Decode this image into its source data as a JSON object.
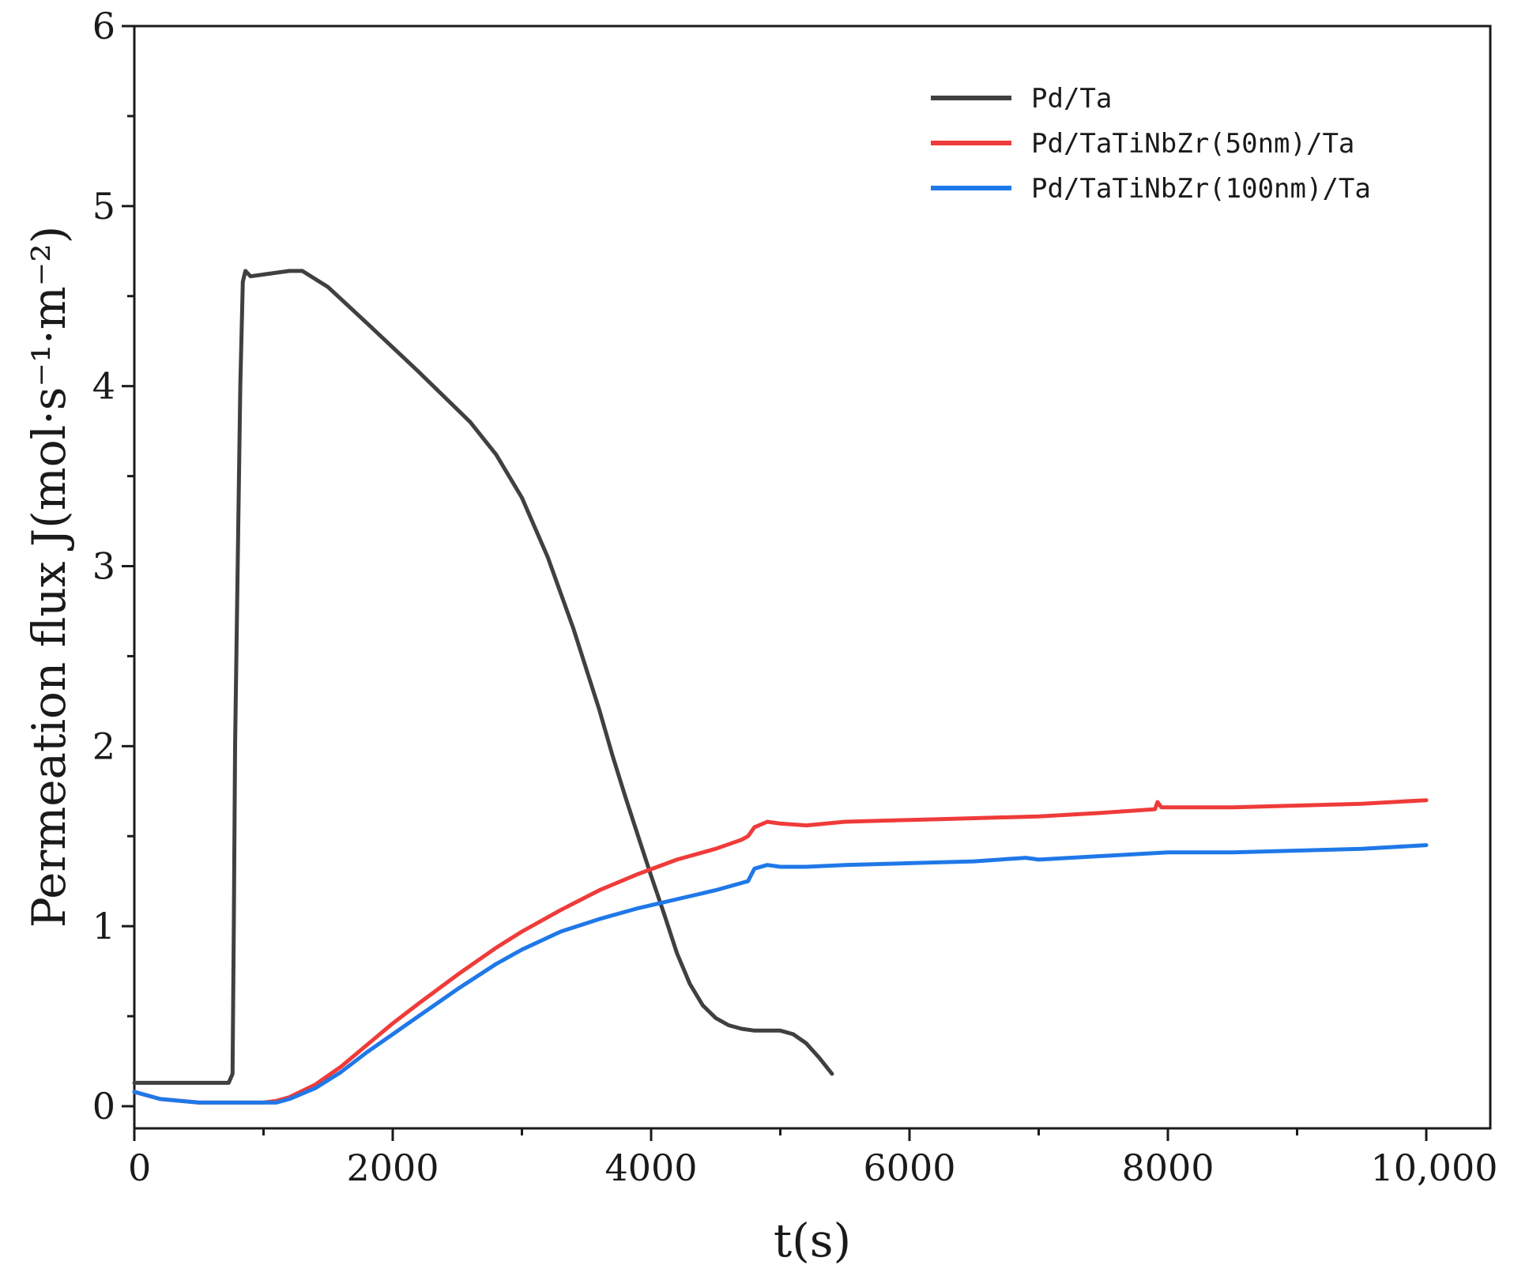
{
  "chart_data": {
    "type": "line",
    "title": "",
    "xlabel": "t(s)",
    "ylabel": "Permeation flux J(mol·s⁻¹·m⁻²)",
    "xlim": [
      0,
      10500
    ],
    "ylim": [
      0,
      6
    ],
    "x_ticks": [
      0,
      2000,
      4000,
      6000,
      8000,
      10000
    ],
    "x_tick_labels": [
      "0",
      "2000",
      "4000",
      "6000",
      "8000",
      "10,000"
    ],
    "y_ticks": [
      0,
      1,
      2,
      3,
      4,
      5,
      6
    ],
    "y_tick_labels": [
      "0",
      "1",
      "2",
      "3",
      "4",
      "5",
      "6"
    ],
    "grid": false,
    "legend_position": "top-right",
    "series": [
      {
        "name": "Pd/Ta",
        "color": "#404040",
        "x": [
          0,
          500,
          730,
          760,
          770,
          780,
          800,
          820,
          840,
          860,
          900,
          1000,
          1200,
          1300,
          1500,
          1800,
          2200,
          2600,
          2800,
          3000,
          3200,
          3400,
          3600,
          3700,
          3800,
          3900,
          4000,
          4100,
          4200,
          4300,
          4400,
          4500,
          4600,
          4700,
          4800,
          4900,
          5000,
          5100,
          5200,
          5300,
          5400
        ],
        "y": [
          0.13,
          0.13,
          0.13,
          0.18,
          1.0,
          2.0,
          3.0,
          4.0,
          4.58,
          4.64,
          4.61,
          4.62,
          4.64,
          4.64,
          4.55,
          4.35,
          4.08,
          3.8,
          3.62,
          3.38,
          3.05,
          2.65,
          2.2,
          1.95,
          1.72,
          1.5,
          1.28,
          1.07,
          0.85,
          0.68,
          0.56,
          0.49,
          0.45,
          0.43,
          0.42,
          0.42,
          0.42,
          0.4,
          0.35,
          0.27,
          0.18
        ]
      },
      {
        "name": "Pd/TaTiNbZr(50nm)/Ta",
        "color": "#ef3b39",
        "x": [
          0,
          200,
          500,
          800,
          1000,
          1100,
          1200,
          1400,
          1600,
          1800,
          2000,
          2200,
          2500,
          2800,
          3000,
          3300,
          3600,
          3900,
          4200,
          4500,
          4700,
          4750,
          4800,
          4900,
          5000,
          5200,
          5500,
          6000,
          6500,
          7000,
          7500,
          7900,
          7920,
          7950,
          8500,
          9000,
          9500,
          10000
        ],
        "y": [
          0.08,
          0.04,
          0.02,
          0.02,
          0.02,
          0.03,
          0.05,
          0.12,
          0.22,
          0.34,
          0.46,
          0.57,
          0.73,
          0.88,
          0.97,
          1.09,
          1.2,
          1.29,
          1.37,
          1.43,
          1.48,
          1.5,
          1.55,
          1.58,
          1.57,
          1.56,
          1.58,
          1.59,
          1.6,
          1.61,
          1.63,
          1.65,
          1.69,
          1.66,
          1.66,
          1.67,
          1.68,
          1.7
        ]
      },
      {
        "name": "Pd/TaTiNbZr(100nm)/Ta",
        "color": "#1f78e8",
        "x": [
          0,
          200,
          500,
          800,
          1000,
          1100,
          1200,
          1400,
          1600,
          1800,
          2000,
          2200,
          2500,
          2800,
          3000,
          3300,
          3600,
          3900,
          4200,
          4500,
          4700,
          4750,
          4800,
          4900,
          5000,
          5200,
          5500,
          6000,
          6500,
          6900,
          7000,
          7500,
          8000,
          8500,
          9000,
          9500,
          10000
        ],
        "y": [
          0.08,
          0.04,
          0.02,
          0.02,
          0.02,
          0.02,
          0.04,
          0.1,
          0.19,
          0.3,
          0.4,
          0.5,
          0.65,
          0.79,
          0.87,
          0.97,
          1.04,
          1.1,
          1.15,
          1.2,
          1.24,
          1.25,
          1.32,
          1.34,
          1.33,
          1.33,
          1.34,
          1.35,
          1.36,
          1.38,
          1.37,
          1.39,
          1.41,
          1.41,
          1.42,
          1.43,
          1.45
        ]
      }
    ]
  }
}
